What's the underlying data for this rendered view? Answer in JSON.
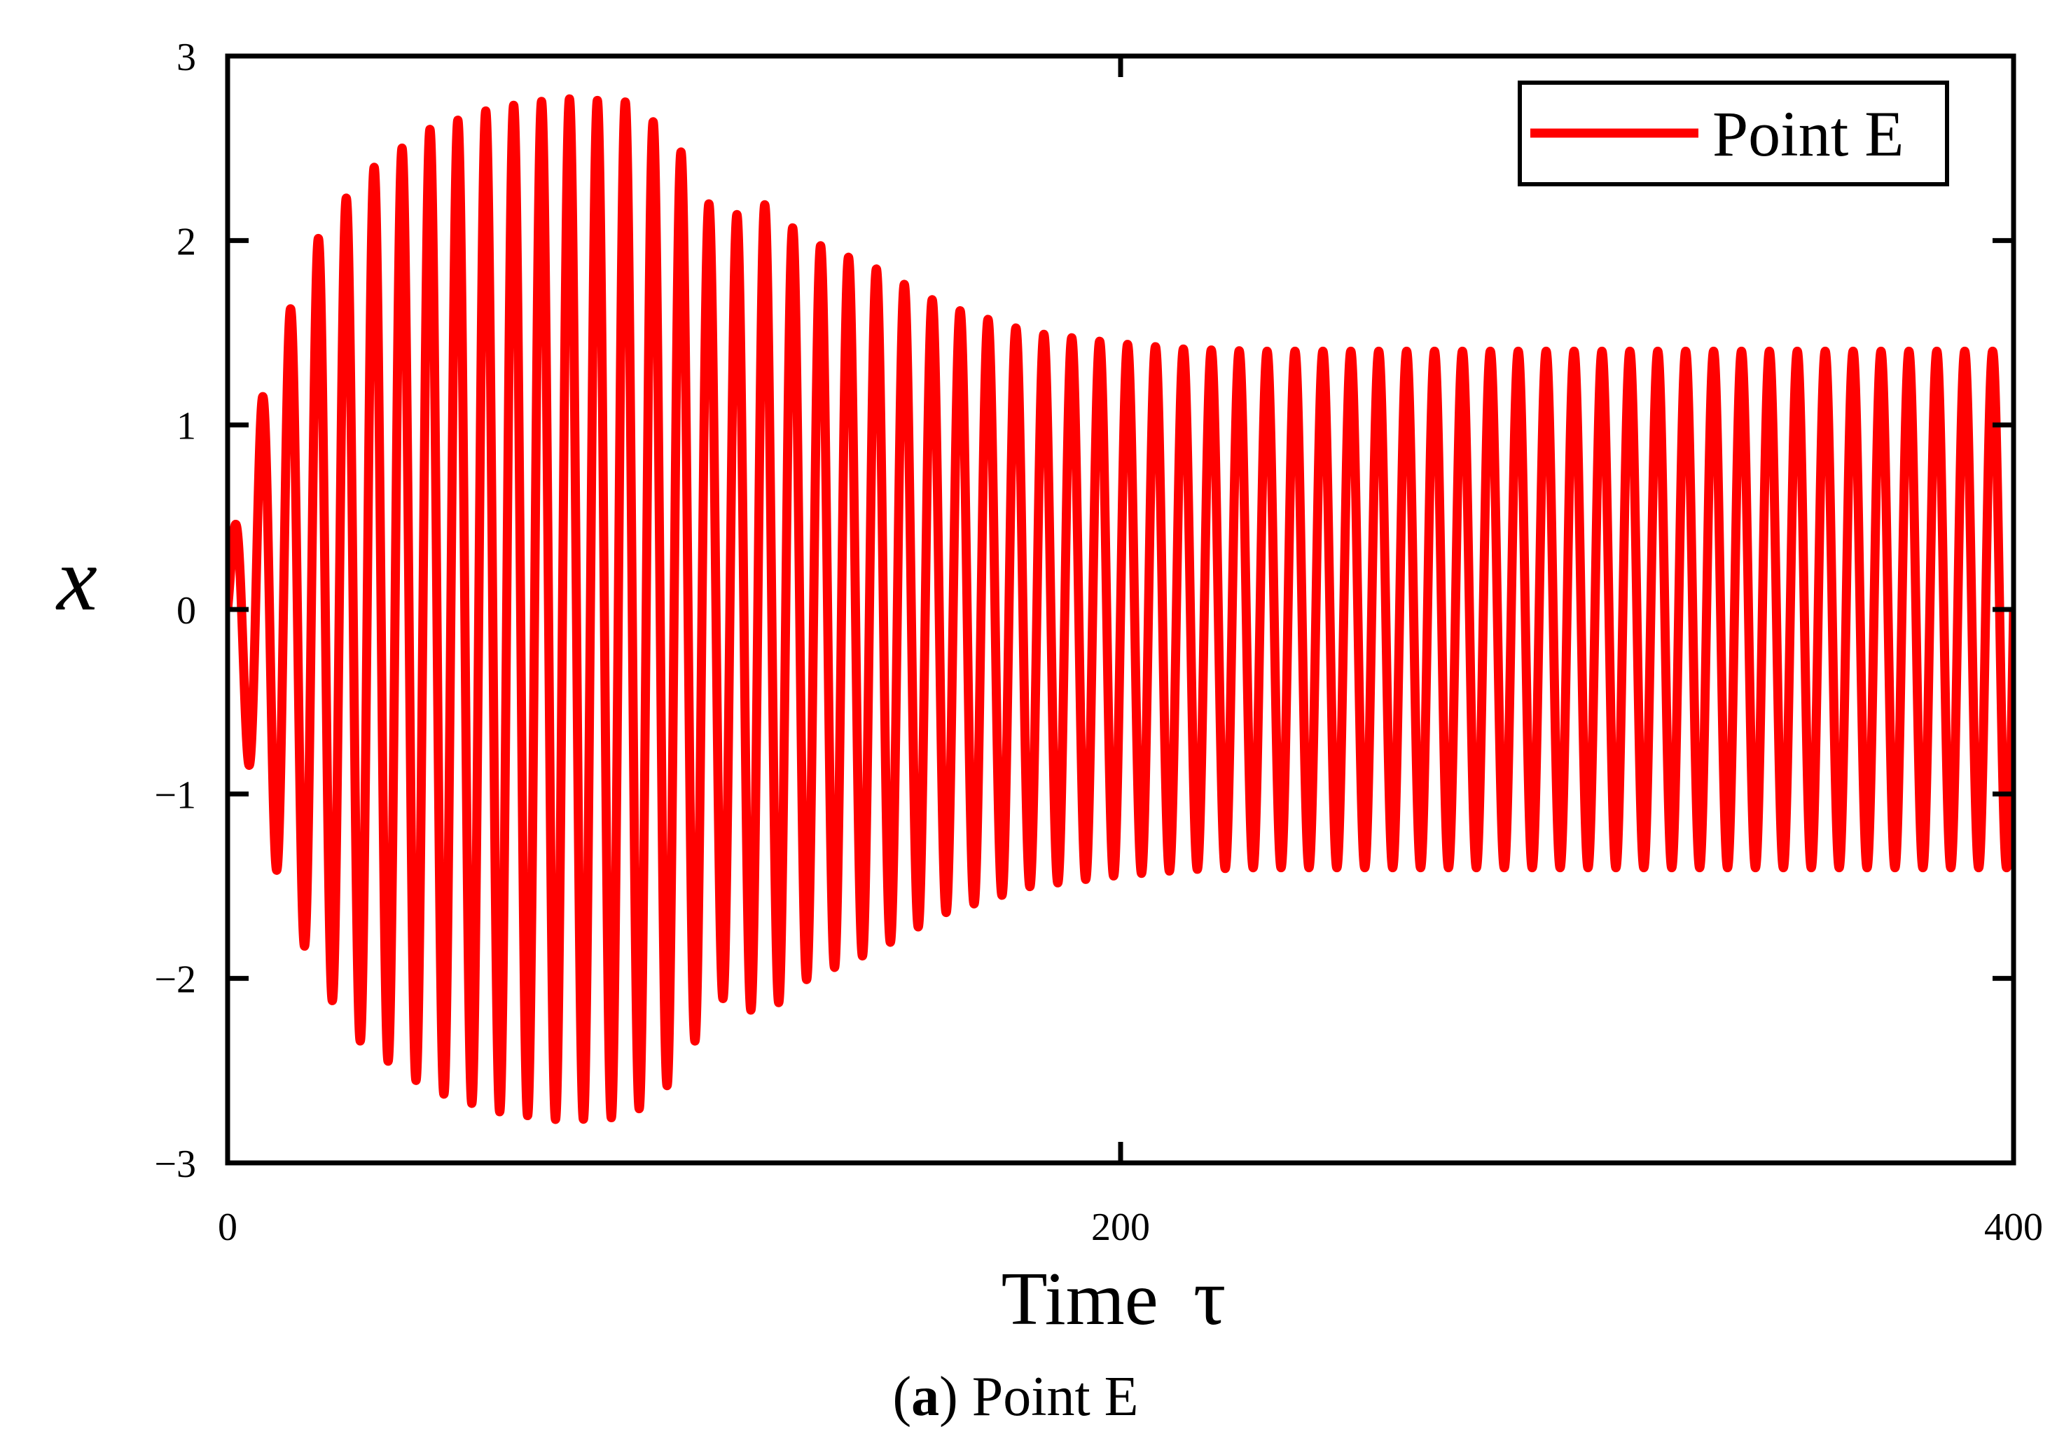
{
  "chart_data": {
    "type": "line",
    "xlabel": "Time",
    "xlabel_symbol": "τ",
    "ylabel": "x",
    "xlim": [
      0,
      400
    ],
    "ylim": [
      -3,
      3
    ],
    "x_ticks": [
      0,
      200,
      400
    ],
    "x_tick_labels": [
      "0",
      "200",
      "400"
    ],
    "y_ticks": [
      -3,
      -2,
      -1,
      0,
      1,
      2,
      3
    ],
    "y_tick_labels": [
      "−3",
      "−2",
      "−1",
      "0",
      "1",
      "2",
      "3"
    ],
    "grid": false,
    "legend_position": "top-right",
    "series": [
      {
        "name": "Point E",
        "color": "#ff0000",
        "period": 6.25,
        "envelope": {
          "tau": [
            0,
            6,
            12,
            20,
            30,
            45,
            60,
            75,
            90,
            100,
            110,
            120,
            130,
            145,
            160,
            180,
            200,
            215,
            230,
            400
          ],
          "amplitude": [
            0.25,
            1.0,
            1.5,
            2.0,
            2.35,
            2.6,
            2.72,
            2.77,
            2.75,
            2.55,
            2.1,
            2.2,
            2.0,
            1.85,
            1.65,
            1.5,
            1.44,
            1.41,
            1.4,
            1.4
          ]
        }
      }
    ],
    "caption_label": "a",
    "caption_text": "Point E"
  }
}
